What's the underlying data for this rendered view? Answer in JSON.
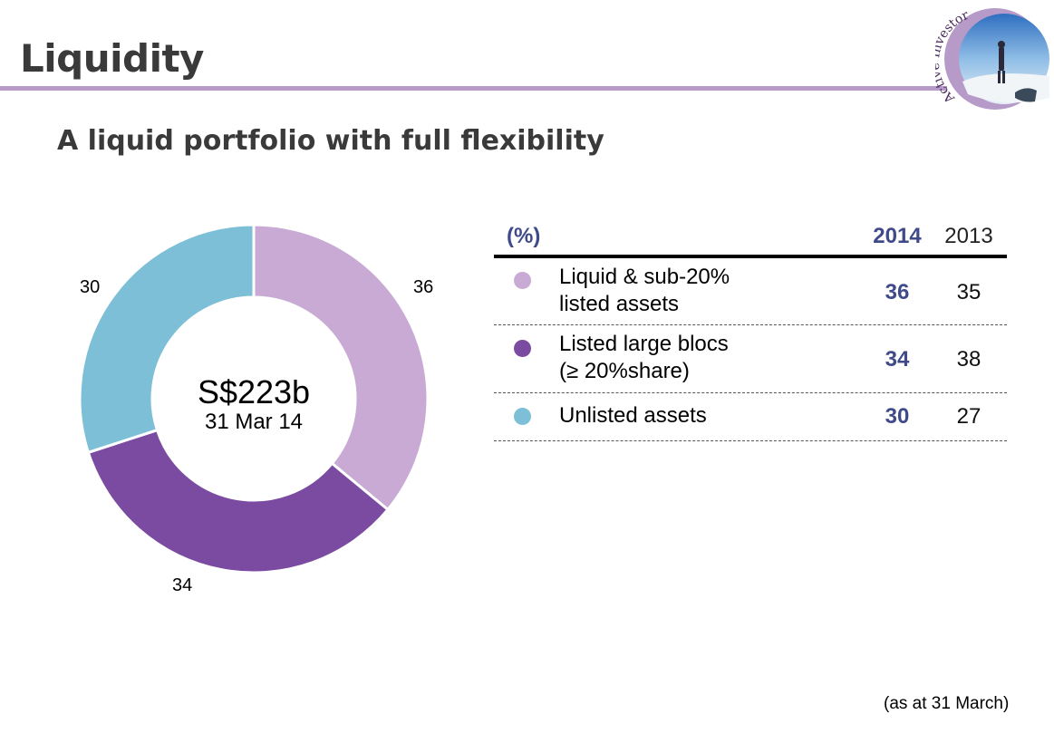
{
  "slide": {
    "title": "Liquidity",
    "subtitle": "A liquid portfolio with full flexibility",
    "badge_text": "Active Investor",
    "footnote": "(as at 31 March)"
  },
  "colors": {
    "liquid": "#c8aad4",
    "listed_blocs": "#7a4ba0",
    "unlisted": "#7cbfd6",
    "title_rule": "#b69bc9",
    "header_blue": "#3f4a8a"
  },
  "chart_data": {
    "type": "pie",
    "variant": "donut",
    "center_total": "S$223b",
    "center_date": "31 Mar 14",
    "categories": [
      "Liquid & sub-20% listed assets",
      "Listed large blocs (≥ 20%share)",
      "Unlisted assets"
    ],
    "values": [
      36,
      34,
      30
    ],
    "value_labels": [
      "36",
      "34",
      "30"
    ],
    "colors": [
      "#c8aad4",
      "#7a4ba0",
      "#7cbfd6"
    ]
  },
  "table": {
    "unit_header": "(%)",
    "col_2014": "2014",
    "col_2013": "2013",
    "rows": [
      {
        "line1": "Liquid & sub-20%",
        "line2": "listed assets",
        "v2014": "36",
        "v2013": "35",
        "color": "#c8aad4"
      },
      {
        "line1": "Listed large blocs",
        "line2": "(≥ 20%share)",
        "v2014": "34",
        "v2013": "38",
        "color": "#7a4ba0"
      },
      {
        "line1": "Unlisted assets",
        "line2": "",
        "v2014": "30",
        "v2013": "27",
        "color": "#7cbfd6"
      }
    ]
  }
}
